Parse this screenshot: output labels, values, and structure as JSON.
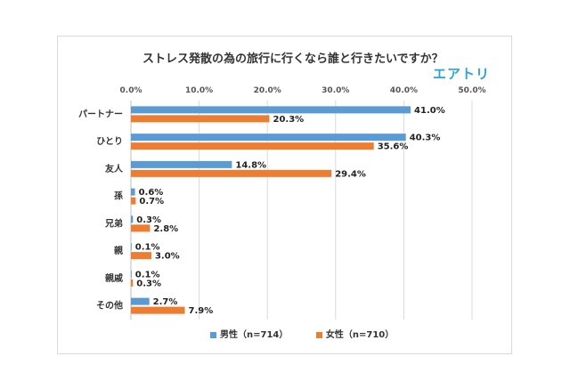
{
  "brand": {
    "name": "エアトリ",
    "color": "#2aa3d9"
  },
  "chart_data": {
    "type": "bar",
    "orientation": "horizontal",
    "title": "ストレス発散の為の旅行に行くなら誰と行きたいですか？",
    "categories": [
      "パートナー",
      "ひとり",
      "友人",
      "孫",
      "兄弟",
      "親",
      "親戚",
      "その他"
    ],
    "series": [
      {
        "name": "男性（n=714）",
        "color": "#5b9bd5",
        "values": [
          41.0,
          40.3,
          14.8,
          0.6,
          0.3,
          0.1,
          0.1,
          2.7
        ]
      },
      {
        "name": "女性（n=710）",
        "color": "#ed7d31",
        "values": [
          20.3,
          35.6,
          29.4,
          0.7,
          2.8,
          3.0,
          0.3,
          7.9
        ]
      }
    ],
    "xlim": [
      0,
      50
    ],
    "xticks": [
      "0.0%",
      "10.0%",
      "20.0%",
      "30.0%",
      "40.0%",
      "50.0%"
    ],
    "value_suffix": "%",
    "grid": true,
    "legend_position": "bottom"
  }
}
